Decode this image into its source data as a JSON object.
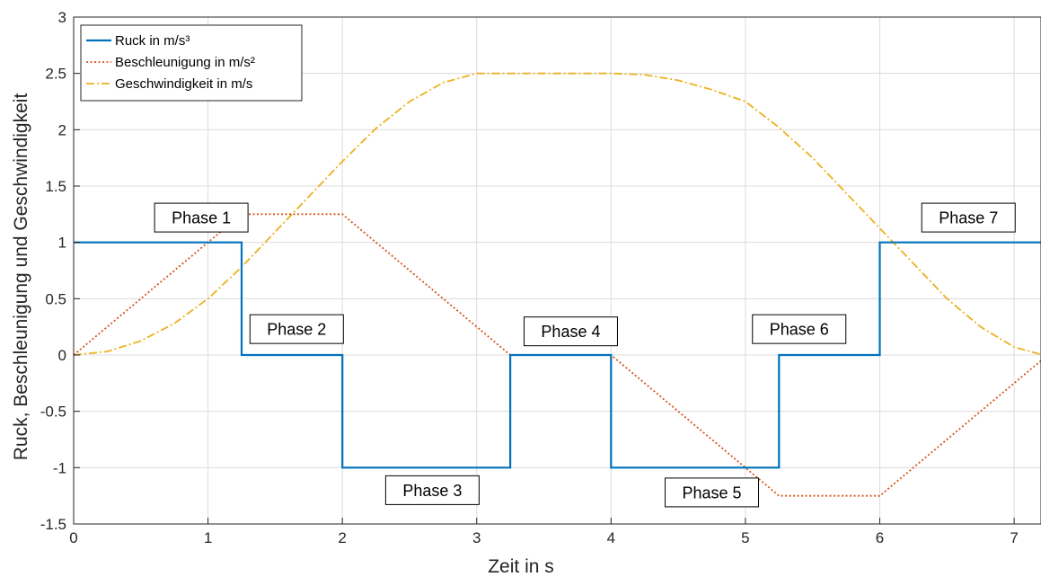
{
  "chart_data": {
    "type": "line",
    "xlabel": "Zeit in s",
    "ylabel": "Ruck, Beschleunigung und Geschwindigkeit",
    "xlim": [
      0,
      7.2
    ],
    "ylim": [
      -1.5,
      3
    ],
    "xticks": [
      0,
      1,
      2,
      3,
      4,
      5,
      6,
      7
    ],
    "yticks": [
      -1.5,
      -1,
      -0.5,
      0,
      0.5,
      1,
      1.5,
      2,
      2.5,
      3
    ],
    "xtick_labels": [
      "0",
      "1",
      "2",
      "3",
      "4",
      "5",
      "6",
      "7"
    ],
    "ytick_labels": [
      "-1.5",
      "-1",
      "-0.5",
      "0",
      "0.5",
      "1",
      "1.5",
      "2",
      "2.5",
      "3"
    ],
    "grid": true,
    "legend_position": "top-left",
    "series": [
      {
        "name": "Ruck in m/s³",
        "color": "#0072BD",
        "style": "solid",
        "x": [
          0,
          1.25,
          1.25,
          2,
          2,
          3.25,
          3.25,
          4,
          4,
          5.25,
          5.25,
          6,
          6,
          7.2
        ],
        "y": [
          1,
          1,
          0,
          0,
          -1,
          -1,
          0,
          0,
          -1,
          -1,
          0,
          0,
          1,
          1
        ]
      },
      {
        "name": "Beschleunigung in m/s²",
        "color": "#D95319",
        "style": "dotted",
        "x": [
          0,
          1.25,
          2,
          3.25,
          4,
          5.25,
          6,
          7.2
        ],
        "y": [
          0,
          1.25,
          1.25,
          0,
          0,
          -1.25,
          -1.25,
          -0.05
        ]
      },
      {
        "name": "Geschwindigkeit in m/s",
        "color": "#EDB120",
        "style": "dashdot",
        "x": [
          0,
          0.25,
          0.5,
          0.75,
          1,
          1.25,
          1.5,
          1.75,
          2,
          2.25,
          2.5,
          2.75,
          3,
          3.25,
          3.5,
          3.75,
          4,
          4.25,
          4.5,
          4.75,
          5,
          5.25,
          5.5,
          5.75,
          6,
          6.25,
          6.5,
          6.75,
          7,
          7.2
        ],
        "y": [
          0,
          0.031,
          0.125,
          0.281,
          0.5,
          0.781,
          1.094,
          1.406,
          1.719,
          2.012,
          2.25,
          2.418,
          2.5,
          2.5,
          2.5,
          2.5,
          2.5,
          2.488,
          2.438,
          2.355,
          2.25,
          2.02,
          1.75,
          1.438,
          1.125,
          0.813,
          0.5,
          0.25,
          0.07,
          0.005
        ]
      }
    ],
    "annotations": [
      {
        "text": "Phase 1",
        "x": 0.95,
        "y": 1.22
      },
      {
        "text": "Phase 2",
        "x": 1.66,
        "y": 0.23
      },
      {
        "text": "Phase 3",
        "x": 2.67,
        "y": -1.2
      },
      {
        "text": "Phase 4",
        "x": 3.7,
        "y": 0.21
      },
      {
        "text": "Phase 5",
        "x": 4.75,
        "y": -1.22
      },
      {
        "text": "Phase 6",
        "x": 5.4,
        "y": 0.23
      },
      {
        "text": "Phase 7",
        "x": 6.66,
        "y": 1.22
      }
    ]
  }
}
